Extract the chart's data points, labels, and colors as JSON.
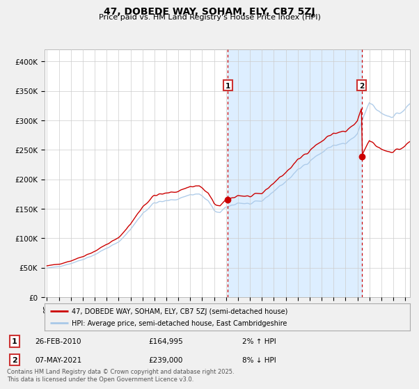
{
  "title": "47, DOBEDE WAY, SOHAM, ELY, CB7 5ZJ",
  "subtitle": "Price paid vs. HM Land Registry's House Price Index (HPI)",
  "ylabel_ticks": [
    "£0",
    "£50K",
    "£100K",
    "£150K",
    "£200K",
    "£250K",
    "£300K",
    "£350K",
    "£400K"
  ],
  "ytick_values": [
    0,
    50000,
    100000,
    150000,
    200000,
    250000,
    300000,
    350000,
    400000
  ],
  "ylim": [
    0,
    420000
  ],
  "xlim_start": 1994.8,
  "xlim_end": 2025.4,
  "xticks": [
    1995,
    1996,
    1997,
    1998,
    1999,
    2000,
    2001,
    2002,
    2003,
    2004,
    2005,
    2006,
    2007,
    2008,
    2009,
    2010,
    2011,
    2012,
    2013,
    2014,
    2015,
    2016,
    2017,
    2018,
    2019,
    2020,
    2021,
    2022,
    2023,
    2024,
    2025
  ],
  "hpi_color": "#a8c8e8",
  "price_color": "#cc0000",
  "dotted_line_color": "#cc0000",
  "shade_color": "#ddeeff",
  "background_color": "#f0f0f0",
  "plot_bg_color": "#ffffff",
  "grid_color": "#cccccc",
  "legend_box_color": "#f0f0f0",
  "annotation_box_color": "#cc3333",
  "transaction1_year": 2010.15,
  "transaction1_price": 164995,
  "transaction1_label": "1",
  "transaction1_date": "26-FEB-2010",
  "transaction1_pct": "2% ↑ HPI",
  "transaction2_year": 2021.35,
  "transaction2_price": 239000,
  "transaction2_label": "2",
  "transaction2_date": "07-MAY-2021",
  "transaction2_pct": "8% ↓ HPI",
  "legend_line1": "47, DOBEDE WAY, SOHAM, ELY, CB7 5ZJ (semi-detached house)",
  "legend_line2": "HPI: Average price, semi-detached house, East Cambridgeshire",
  "footer": "Contains HM Land Registry data © Crown copyright and database right 2025.\nThis data is licensed under the Open Government Licence v3.0."
}
